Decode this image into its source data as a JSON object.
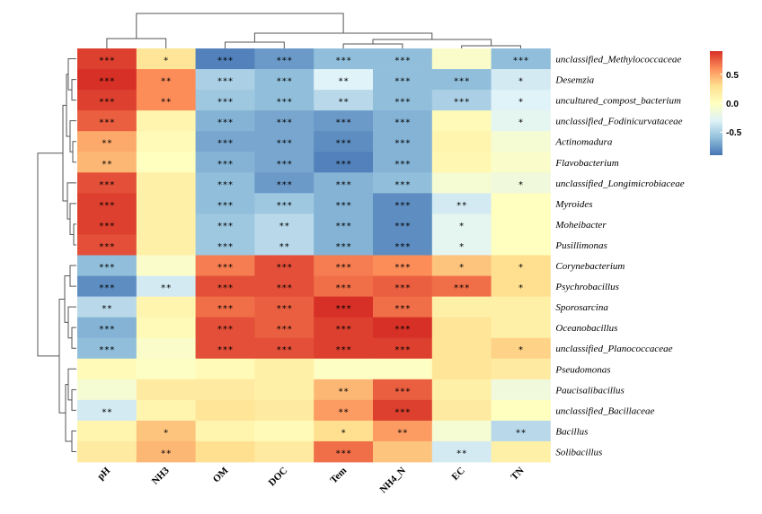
{
  "chart_data": {
    "type": "heatmap",
    "title": "",
    "columns": [
      "pH",
      "NH3",
      "OM",
      "DOC",
      "Tem",
      "NH4_N",
      "EC",
      "TN"
    ],
    "rows": [
      "unclassified_Methylococcaceae",
      "Desemzia",
      "uncultured_compost_bacterium",
      "unclassified_Fodinicurvataceae",
      "Actinomadura",
      "Flavobacterium",
      "unclassified_Longimicrobiaceae",
      "Myroides",
      "Moheibacter",
      "Pusillimonas",
      "Corynebacterium",
      "Psychrobacillus",
      "Sporosarcina",
      "Oceanobacillus",
      "unclassified_Planococcaceae",
      "Pseudomonas",
      "Paucisalibacillus",
      "unclassified_Bacillaceae",
      "Bacillus",
      "Solibacillus"
    ],
    "values": [
      [
        0.85,
        0.25,
        -0.85,
        -0.75,
        -0.6,
        -0.6,
        -0.05,
        -0.6
      ],
      [
        0.9,
        0.6,
        -0.5,
        -0.6,
        -0.3,
        -0.6,
        -0.6,
        -0.35
      ],
      [
        0.85,
        0.6,
        -0.55,
        -0.6,
        -0.45,
        -0.6,
        -0.5,
        -0.3
      ],
      [
        0.75,
        0.1,
        -0.65,
        -0.7,
        -0.75,
        -0.65,
        0.05,
        -0.25
      ],
      [
        0.5,
        0.05,
        -0.7,
        -0.7,
        -0.8,
        -0.65,
        0.1,
        -0.1
      ],
      [
        0.45,
        0.0,
        -0.65,
        -0.7,
        -0.85,
        -0.65,
        0.08,
        -0.05
      ],
      [
        0.8,
        0.15,
        -0.6,
        -0.75,
        -0.65,
        -0.6,
        -0.1,
        -0.15
      ],
      [
        0.85,
        0.15,
        -0.6,
        -0.55,
        -0.65,
        -0.8,
        -0.35,
        0.0
      ],
      [
        0.85,
        0.15,
        -0.55,
        -0.45,
        -0.65,
        -0.8,
        -0.25,
        0.0
      ],
      [
        0.8,
        0.15,
        -0.55,
        -0.45,
        -0.65,
        -0.8,
        -0.25,
        0.0
      ],
      [
        -0.6,
        -0.05,
        0.65,
        0.8,
        0.65,
        0.6,
        0.4,
        0.3
      ],
      [
        -0.8,
        -0.35,
        0.8,
        0.8,
        0.7,
        0.75,
        0.7,
        0.3
      ],
      [
        -0.45,
        0.1,
        0.7,
        0.75,
        0.9,
        0.7,
        0.15,
        0.15
      ],
      [
        -0.65,
        0.05,
        0.8,
        0.75,
        0.85,
        0.9,
        0.25,
        0.15
      ],
      [
        -0.6,
        -0.05,
        0.8,
        0.8,
        0.85,
        0.85,
        0.25,
        0.35
      ],
      [
        0.05,
        -0.02,
        0.05,
        0.15,
        -0.02,
        -0.02,
        0.25,
        0.2
      ],
      [
        -0.1,
        0.2,
        0.2,
        0.15,
        0.45,
        0.75,
        0.15,
        -0.15
      ],
      [
        -0.35,
        0.1,
        0.25,
        0.2,
        0.55,
        0.85,
        0.2,
        0.0
      ],
      [
        0.1,
        0.4,
        0.1,
        0.05,
        0.3,
        0.55,
        -0.1,
        -0.45
      ],
      [
        0.2,
        0.45,
        0.3,
        0.2,
        0.7,
        0.4,
        -0.35,
        0.15
      ]
    ],
    "significance": [
      [
        "***",
        "*",
        "***",
        "***",
        "***",
        "***",
        "",
        "***"
      ],
      [
        "***",
        "**",
        "***",
        "***",
        "**",
        "***",
        "***",
        "*"
      ],
      [
        "***",
        "**",
        "***",
        "***",
        "**",
        "***",
        "***",
        "*"
      ],
      [
        "***",
        "",
        "***",
        "***",
        "***",
        "***",
        "",
        "*"
      ],
      [
        "**",
        "",
        "***",
        "***",
        "***",
        "***",
        "",
        ""
      ],
      [
        "**",
        "",
        "***",
        "***",
        "***",
        "***",
        "",
        ""
      ],
      [
        "***",
        "",
        "***",
        "***",
        "***",
        "***",
        "",
        "*"
      ],
      [
        "***",
        "",
        "***",
        "***",
        "***",
        "***",
        "**",
        ""
      ],
      [
        "***",
        "",
        "***",
        "**",
        "***",
        "***",
        "*",
        ""
      ],
      [
        "***",
        "",
        "***",
        "**",
        "***",
        "***",
        "*",
        ""
      ],
      [
        "***",
        "",
        "***",
        "***",
        "***",
        "***",
        "*",
        "*"
      ],
      [
        "***",
        "**",
        "***",
        "***",
        "***",
        "***",
        "***",
        "*"
      ],
      [
        "**",
        "",
        "***",
        "***",
        "***",
        "***",
        "",
        ""
      ],
      [
        "***",
        "",
        "***",
        "***",
        "***",
        "***",
        "",
        ""
      ],
      [
        "***",
        "",
        "***",
        "***",
        "***",
        "***",
        "",
        "*"
      ],
      [
        "",
        "",
        "",
        "",
        "",
        "",
        "",
        ""
      ],
      [
        "",
        "",
        "",
        "",
        "**",
        "***",
        "",
        ""
      ],
      [
        "**",
        "",
        "",
        "",
        "**",
        "***",
        "",
        ""
      ],
      [
        "",
        "*",
        "",
        "",
        "*",
        "**",
        "",
        "**"
      ],
      [
        "",
        "**",
        "",
        "",
        "***",
        "",
        "**",
        ""
      ]
    ],
    "legend": {
      "position": "top-right",
      "ticks": [
        "0.5",
        "0.0",
        "-0.5"
      ],
      "tick_values": [
        0.5,
        0.0,
        -0.5
      ],
      "range": [
        -0.9,
        0.9
      ]
    },
    "colors": {
      "low": "#4575b4",
      "mid": "#ffffbf",
      "high": "#d73027",
      "stops": [
        "#4575b4",
        "#91bfdb",
        "#e0f3f8",
        "#ffffbf",
        "#fee090",
        "#fc8d59",
        "#d73027"
      ]
    }
  }
}
